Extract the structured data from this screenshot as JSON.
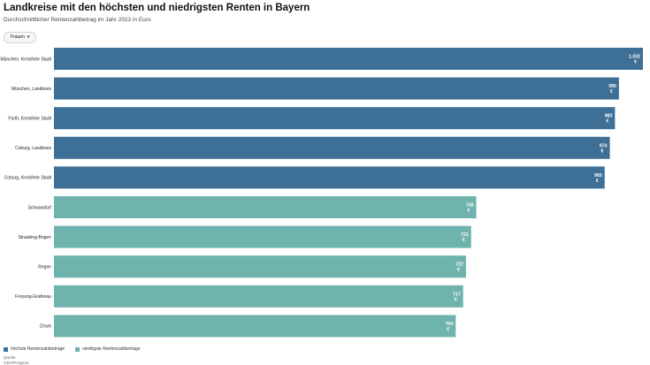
{
  "header": {
    "title": "Landkreise mit den höchsten und niedrigsten Renten in Bayern",
    "subtitle": "Durchschnittlicher Rentenzahlbetrag im Jahr 2023 in Euro"
  },
  "filter": {
    "label": "Frauen"
  },
  "legend": {
    "high_label": "höchste Rentenzahlbeträge",
    "low_label": "niedrigste Rentenzahlbeträge"
  },
  "source": {
    "label": "Quelle:",
    "text": "GDV/Prognos"
  },
  "colors": {
    "high": "#3e6f96",
    "low": "#6eb3ae"
  },
  "chart_data": {
    "type": "bar",
    "orientation": "horizontal",
    "unit": "€",
    "categories": [
      "München, Kreisfreie Stadt",
      "München, Landkreis",
      "Fürth, Kreisfreie Stadt",
      "Coburg, Landkreis",
      "Coburg, Kreisfreie Stadt",
      "Schwandorf",
      "Straubing-Bogen",
      "Regen",
      "Freyung-Grafenau",
      "Cham"
    ],
    "values": [
      1032,
      990,
      983,
      974,
      965,
      740,
      731,
      722,
      717,
      704
    ],
    "value_labels": [
      "1.032",
      "990",
      "983",
      "974",
      "965",
      "740",
      "731",
      "722",
      "717",
      "704"
    ],
    "groups": [
      "high",
      "high",
      "high",
      "high",
      "high",
      "low",
      "low",
      "low",
      "low",
      "low"
    ],
    "xlim": [
      0,
      1032
    ],
    "grid": false,
    "legend_position": "bottom-left"
  }
}
